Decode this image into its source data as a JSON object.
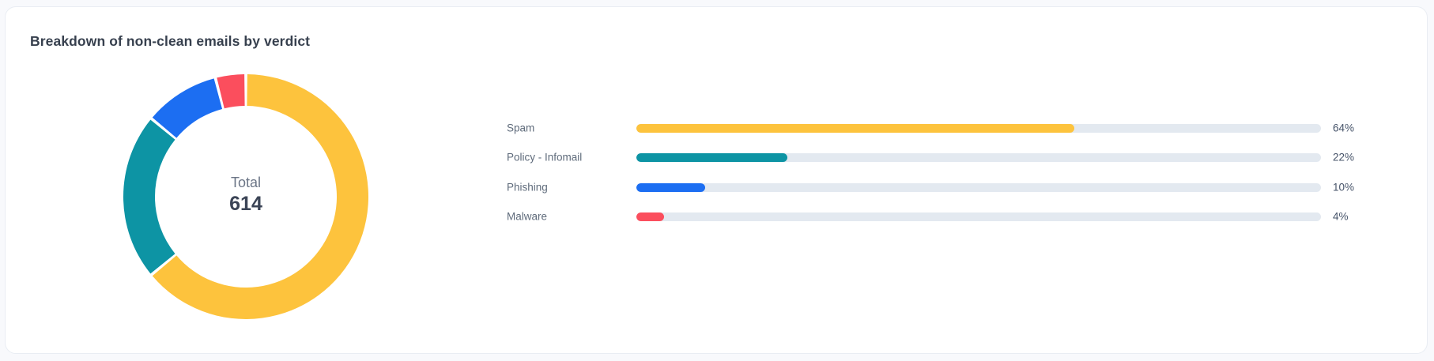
{
  "page": {
    "background": "#f8f9fc"
  },
  "card": {
    "title": "Breakdown of non-clean emails by verdict",
    "background": "#ffffff",
    "border_color": "#e9edf3"
  },
  "donut": {
    "center_label": "Total",
    "center_value": "614"
  },
  "chart_data": {
    "type": "pie",
    "subtype": "donut-with-bar-legend",
    "title": "Breakdown of non-clean emails by verdict",
    "total_label": "Total",
    "total_value": 614,
    "categories": [
      "Spam",
      "Policy - Infomail",
      "Phishing",
      "Malware"
    ],
    "values": [
      64,
      22,
      10,
      4
    ],
    "percent_labels": [
      "64%",
      "22%",
      "10%",
      "4%"
    ],
    "colors": [
      "#fdc33d",
      "#0d94a4",
      "#1c6ef2",
      "#fb4e5d"
    ],
    "track_color": "#e3e9f0",
    "donut_start": "top-clockwise",
    "legend_position": "right"
  }
}
